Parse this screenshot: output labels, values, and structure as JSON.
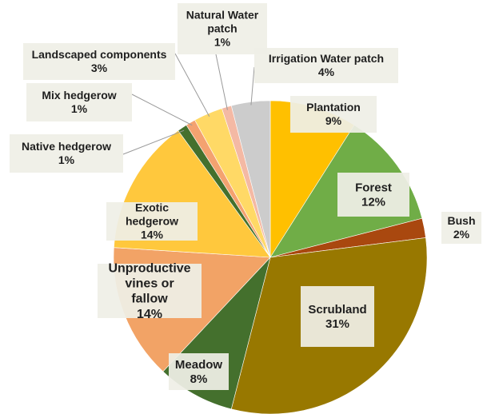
{
  "chart_data": {
    "type": "pie",
    "start_angle_deg": 0,
    "direction": "clockwise",
    "slices": [
      {
        "label": "Plantation",
        "value": 9,
        "value_label": "9%",
        "color": "#ffc000"
      },
      {
        "label": "Forest",
        "value": 12,
        "value_label": "12%",
        "color": "#70ad47"
      },
      {
        "label": "Bush",
        "value": 2,
        "value_label": "2%",
        "color": "#a9480f"
      },
      {
        "label": "Scrubland",
        "value": 31,
        "value_label": "31%",
        "color": "#987800"
      },
      {
        "label": "Meadow",
        "value": 8,
        "value_label": "8%",
        "color": "#44702d"
      },
      {
        "label": "Unproductive vines or fallow",
        "value": 14,
        "value_label": "14%",
        "color": "#f2a366"
      },
      {
        "label": "Exotic hedgerow",
        "value": 14,
        "value_label": "14%",
        "color": "#ffc83d"
      },
      {
        "label": "Native hedgerow",
        "value": 1,
        "value_label": "1%",
        "color": "#44702d"
      },
      {
        "label": "Mix hedgerow",
        "value": 1,
        "value_label": "1%",
        "color": "#f4a270"
      },
      {
        "label": "Landscaped components",
        "value": 3,
        "value_label": "3%",
        "color": "#ffd966"
      },
      {
        "label": "Natural Water patch",
        "value": 1,
        "value_label": "1%",
        "color": "#f4b9a4"
      },
      {
        "label": "Irrigation Water patch",
        "value": 4,
        "value_label": "4%",
        "color": "#cccccc"
      }
    ]
  }
}
